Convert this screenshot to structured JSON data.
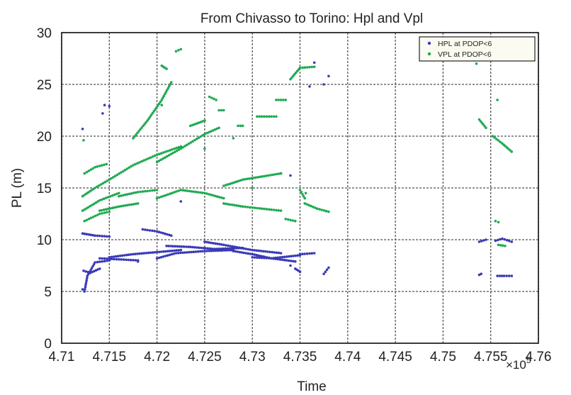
{
  "chart_data": {
    "type": "scatter",
    "title": "From Chivasso to Torino: Hpl and Vpl",
    "xlabel": "Time",
    "ylabel": "PL (m)",
    "x_multiplier_label": "×10",
    "x_multiplier_exponent": "5",
    "xlim": [
      4.71,
      4.76
    ],
    "ylim": [
      0,
      30
    ],
    "x_ticks": [
      "4.71",
      "4.715",
      "4.72",
      "4.725",
      "4.73",
      "4.735",
      "4.74",
      "4.745",
      "4.75",
      "4.755",
      "4.76"
    ],
    "y_ticks": [
      "0",
      "5",
      "10",
      "15",
      "20",
      "25",
      "30"
    ],
    "grid": true,
    "legend_position": "top-right",
    "series": [
      {
        "name": "HPL at PDOP<6",
        "color": "#3a3ab8",
        "segments": [
          [
            [
              4.7122,
              5.2
            ],
            [
              4.7124,
              5.0
            ],
            [
              4.7127,
              6.5
            ],
            [
              4.7135,
              7.8
            ],
            [
              4.715,
              8.0
            ]
          ],
          [
            [
              4.7123,
              7.0
            ],
            [
              4.713,
              6.8
            ],
            [
              4.714,
              7.2
            ]
          ],
          [
            [
              4.7122,
              10.6
            ],
            [
              4.7135,
              10.4
            ],
            [
              4.715,
              10.3
            ]
          ],
          [
            [
              4.714,
              8.2
            ],
            [
              4.716,
              8.1
            ],
            [
              4.718,
              8.0
            ]
          ],
          [
            [
              4.715,
              8.3
            ],
            [
              4.7175,
              8.6
            ],
            [
              4.72,
              8.8
            ],
            [
              4.7225,
              9.0
            ]
          ],
          [
            [
              4.7185,
              11.0
            ],
            [
              4.72,
              10.8
            ],
            [
              4.7215,
              10.4
            ]
          ],
          [
            [
              4.72,
              8.2
            ],
            [
              4.722,
              8.7
            ],
            [
              4.725,
              8.9
            ],
            [
              4.728,
              9.0
            ]
          ],
          [
            [
              4.721,
              9.4
            ],
            [
              4.7235,
              9.3
            ],
            [
              4.726,
              9.1
            ],
            [
              4.729,
              9.2
            ]
          ],
          [
            [
              4.725,
              9.8
            ],
            [
              4.727,
              9.5
            ],
            [
              4.73,
              9.0
            ],
            [
              4.733,
              8.7
            ]
          ],
          [
            [
              4.728,
              8.9
            ],
            [
              4.73,
              8.6
            ],
            [
              4.732,
              8.2
            ],
            [
              4.7345,
              7.9
            ]
          ],
          [
            [
              4.73,
              8.3
            ],
            [
              4.732,
              8.2
            ],
            [
              4.735,
              8.5
            ]
          ],
          [
            [
              4.7345,
              7.2
            ],
            [
              4.735,
              6.9
            ]
          ],
          [
            [
              4.735,
              8.6
            ],
            [
              4.7365,
              8.7
            ]
          ],
          [
            [
              4.7375,
              6.7
            ],
            [
              4.738,
              7.3
            ]
          ],
          [
            [
              4.7538,
              6.6
            ],
            [
              4.754,
              6.7
            ]
          ],
          [
            [
              4.7538,
              9.8
            ],
            [
              4.7545,
              10.0
            ]
          ],
          [
            [
              4.7555,
              9.9
            ],
            [
              4.7562,
              10.1
            ],
            [
              4.7572,
              9.8
            ]
          ],
          [
            [
              4.7557,
              6.5
            ],
            [
              4.7564,
              6.5
            ],
            [
              4.7572,
              6.5
            ]
          ]
        ],
        "points": [
          [
            4.7122,
            20.7
          ],
          [
            4.7143,
            22.2
          ],
          [
            4.7145,
            23.0
          ],
          [
            4.715,
            22.9
          ],
          [
            4.718,
            7.9
          ],
          [
            4.7225,
            13.7
          ],
          [
            4.734,
            16.2
          ],
          [
            4.736,
            24.8
          ],
          [
            4.7365,
            27.1
          ],
          [
            4.7375,
            25.0
          ],
          [
            4.738,
            25.8
          ],
          [
            4.734,
            7.5
          ]
        ]
      },
      {
        "name": "VPL at PDOP<6",
        "color": "#1faa52",
        "segments": [
          [
            [
              4.7122,
              14.2
            ],
            [
              4.7135,
              15.0
            ],
            [
              4.715,
              15.8
            ]
          ],
          [
            [
              4.7124,
              16.4
            ],
            [
              4.7135,
              17.0
            ],
            [
              4.7147,
              17.3
            ]
          ],
          [
            [
              4.7122,
              12.8
            ],
            [
              4.714,
              13.8
            ],
            [
              4.716,
              14.5
            ]
          ],
          [
            [
              4.7124,
              11.8
            ],
            [
              4.714,
              12.5
            ],
            [
              4.715,
              12.7
            ]
          ],
          [
            [
              4.715,
              15.8
            ],
            [
              4.7175,
              17.2
            ],
            [
              4.72,
              18.2
            ],
            [
              4.7225,
              19.0
            ]
          ],
          [
            [
              4.714,
              12.8
            ],
            [
              4.716,
              13.2
            ],
            [
              4.718,
              13.5
            ]
          ],
          [
            [
              4.716,
              14.2
            ],
            [
              4.718,
              14.6
            ],
            [
              4.72,
              14.8
            ]
          ],
          [
            [
              4.7175,
              19.8
            ],
            [
              4.719,
              21.5
            ],
            [
              4.7205,
              23.5
            ],
            [
              4.7215,
              25.2
            ]
          ],
          [
            [
              4.72,
              17.5
            ],
            [
              4.7225,
              18.8
            ],
            [
              4.725,
              20.2
            ],
            [
              4.7265,
              20.8
            ]
          ],
          [
            [
              4.72,
              14.0
            ],
            [
              4.7225,
              14.8
            ],
            [
              4.725,
              14.5
            ],
            [
              4.727,
              14.0
            ]
          ],
          [
            [
              4.7205,
              26.8
            ],
            [
              4.721,
              26.5
            ]
          ],
          [
            [
              4.722,
              28.2
            ],
            [
              4.7225,
              28.4
            ]
          ],
          [
            [
              4.7235,
              21.0
            ],
            [
              4.725,
              21.5
            ]
          ],
          [
            [
              4.7255,
              23.8
            ],
            [
              4.7262,
              23.5
            ]
          ],
          [
            [
              4.7265,
              22.5
            ],
            [
              4.727,
              22.5
            ]
          ],
          [
            [
              4.727,
              15.2
            ],
            [
              4.729,
              15.8
            ],
            [
              4.731,
              16.1
            ],
            [
              4.733,
              16.4
            ]
          ],
          [
            [
              4.727,
              13.5
            ],
            [
              4.729,
              13.2
            ],
            [
              4.731,
              13.0
            ],
            [
              4.733,
              12.8
            ]
          ],
          [
            [
              4.7285,
              21.0
            ],
            [
              4.729,
              21.0
            ]
          ],
          [
            [
              4.7305,
              21.9
            ],
            [
              4.7325,
              21.9
            ]
          ],
          [
            [
              4.7325,
              23.5
            ],
            [
              4.7335,
              23.5
            ]
          ],
          [
            [
              4.7335,
              12.0
            ],
            [
              4.7345,
              11.8
            ]
          ],
          [
            [
              4.734,
              25.5
            ],
            [
              4.735,
              26.6
            ],
            [
              4.7365,
              26.7
            ]
          ],
          [
            [
              4.735,
              14.8
            ],
            [
              4.7355,
              14.0
            ]
          ],
          [
            [
              4.7355,
              13.5
            ],
            [
              4.7368,
              13.0
            ],
            [
              4.738,
              12.7
            ]
          ],
          [
            [
              4.7538,
              21.6
            ],
            [
              4.7545,
              20.8
            ]
          ],
          [
            [
              4.7552,
              20.0
            ],
            [
              4.7562,
              19.3
            ],
            [
              4.7572,
              18.5
            ]
          ],
          [
            [
              4.7555,
              11.8
            ],
            [
              4.7558,
              11.7
            ]
          ],
          [
            [
              4.7558,
              9.5
            ],
            [
              4.7565,
              9.4
            ]
          ]
        ],
        "points": [
          [
            4.7123,
            19.6
          ],
          [
            4.7205,
            23.0
          ],
          [
            4.725,
            18.8
          ],
          [
            4.728,
            19.8
          ],
          [
            4.73,
            15.0
          ],
          [
            4.733,
            16.4
          ],
          [
            4.7356,
            14.5
          ],
          [
            4.7535,
            27.0
          ],
          [
            4.7557,
            23.5
          ]
        ]
      }
    ]
  }
}
